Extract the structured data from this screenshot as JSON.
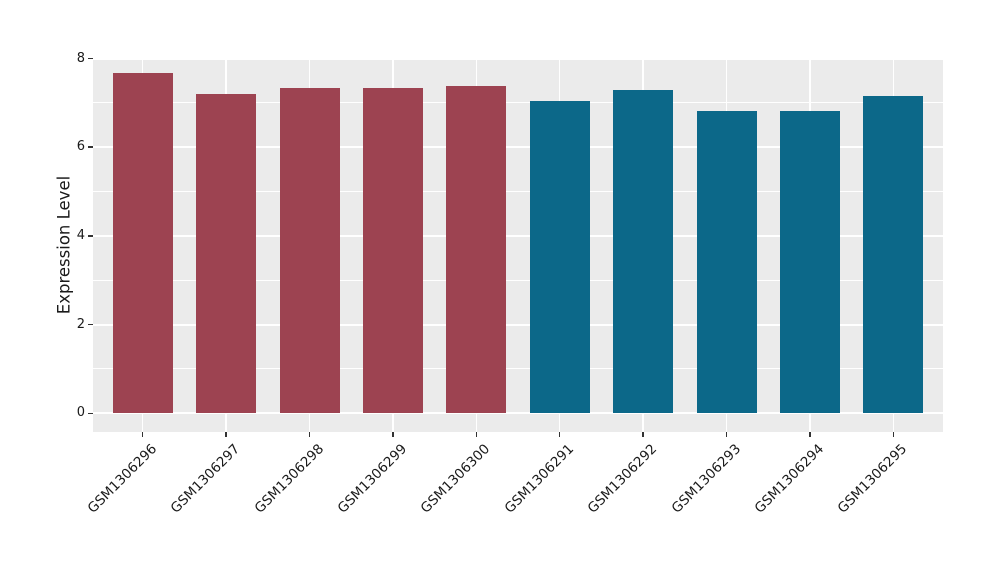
{
  "chart_data": {
    "type": "bar",
    "title": "",
    "xlabel": "",
    "ylabel": "Expression Level",
    "categories": [
      "GSM1306296",
      "GSM1306297",
      "GSM1306298",
      "GSM1306299",
      "GSM1306300",
      "GSM1306291",
      "GSM1306292",
      "GSM1306293",
      "GSM1306294",
      "GSM1306295"
    ],
    "values": [
      7.67,
      7.21,
      7.34,
      7.33,
      7.39,
      7.05,
      7.3,
      6.82,
      6.82,
      7.16
    ],
    "bar_colors": [
      "#9D4351",
      "#9D4351",
      "#9D4351",
      "#9D4351",
      "#9D4351",
      "#0C6889",
      "#0C6889",
      "#0C6889",
      "#0C6889",
      "#0C6889"
    ],
    "group_colors": {
      "first_five": "#9D4351",
      "last_five": "#0C6889"
    },
    "ylim": [
      0,
      8
    ],
    "yticks_major": [
      0,
      2,
      4,
      6,
      8
    ],
    "yticks_minor": [
      1,
      3,
      5,
      7
    ],
    "grid": true,
    "legend": "none",
    "panel_bg": "#EBEBEB",
    "grid_color": "#FFFFFF",
    "tick_color": "#333333",
    "text_color": "#1A1A1A",
    "x_label_rotation_deg": 45
  }
}
